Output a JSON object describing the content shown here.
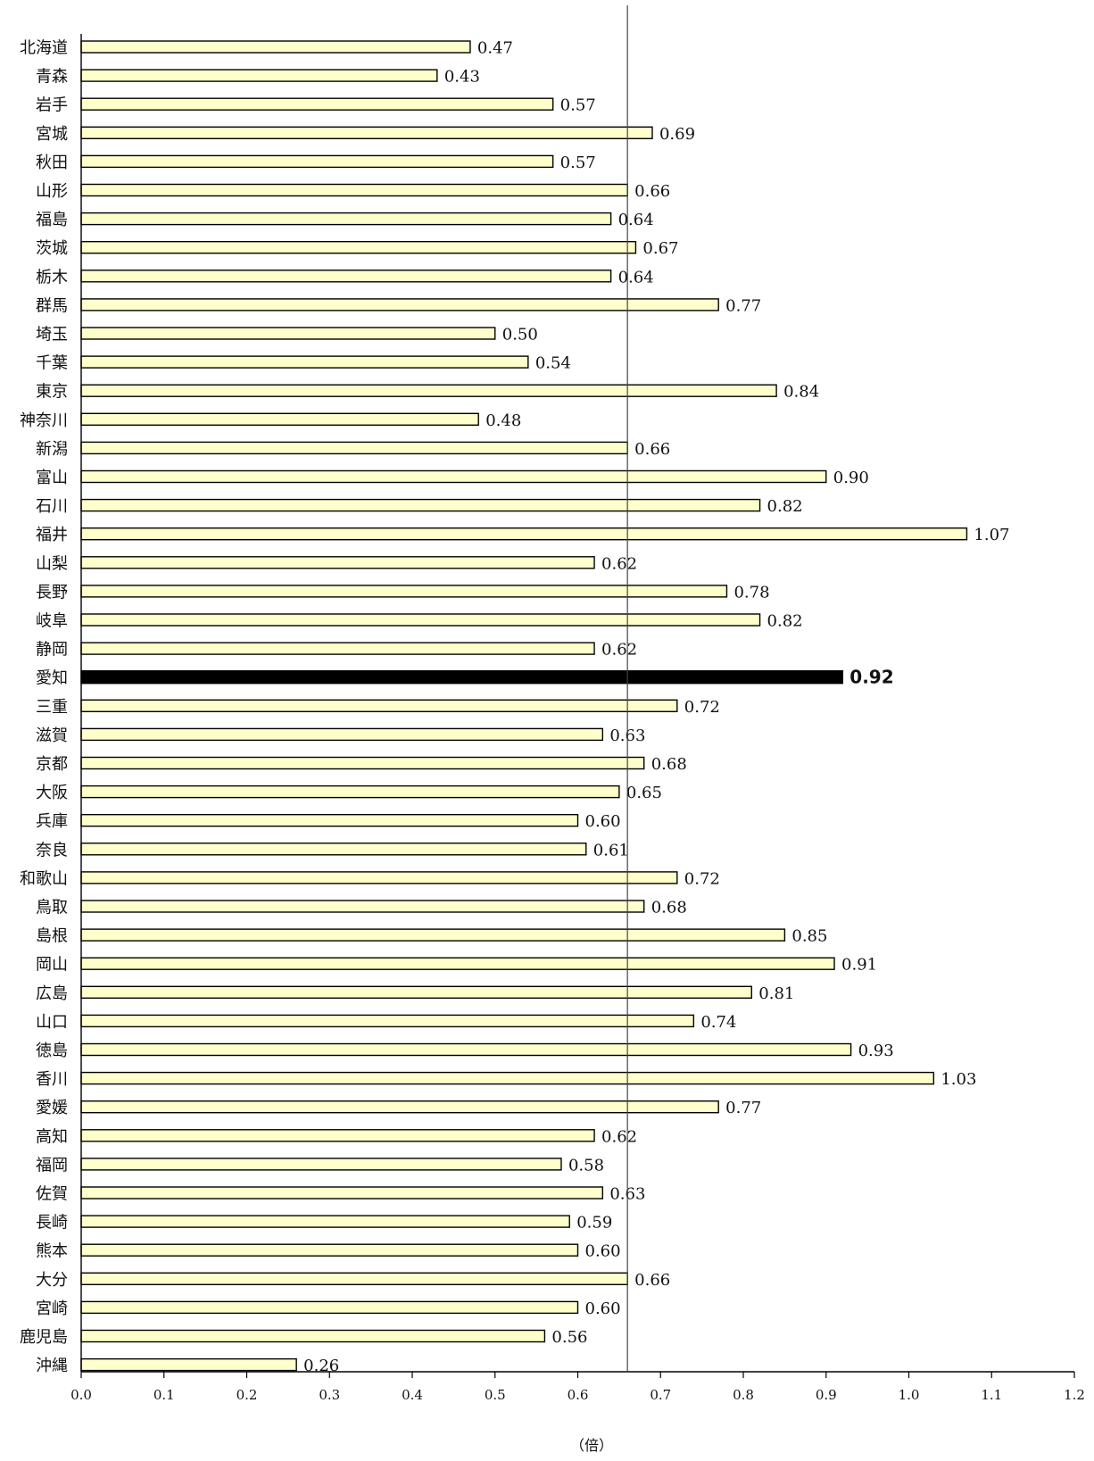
{
  "chart_data": {
    "type": "bar",
    "orientation": "horizontal",
    "categories": [
      "北海道",
      "青森",
      "岩手",
      "宮城",
      "秋田",
      "山形",
      "福島",
      "茨城",
      "栃木",
      "群馬",
      "埼玉",
      "千葉",
      "東京",
      "神奈川",
      "新潟",
      "富山",
      "石川",
      "福井",
      "山梨",
      "長野",
      "岐阜",
      "静岡",
      "愛知",
      "三重",
      "滋賀",
      "京都",
      "大阪",
      "兵庫",
      "奈良",
      "和歌山",
      "鳥取",
      "島根",
      "岡山",
      "広島",
      "山口",
      "徳島",
      "香川",
      "愛媛",
      "高知",
      "福岡",
      "佐賀",
      "長崎",
      "熊本",
      "大分",
      "宮崎",
      "鹿児島",
      "沖縄"
    ],
    "values": [
      0.47,
      0.43,
      0.57,
      0.69,
      0.57,
      0.66,
      0.64,
      0.67,
      0.64,
      0.77,
      0.5,
      0.54,
      0.84,
      0.48,
      0.66,
      0.9,
      0.82,
      1.07,
      0.62,
      0.78,
      0.82,
      0.62,
      0.92,
      0.72,
      0.63,
      0.68,
      0.65,
      0.6,
      0.61,
      0.72,
      0.68,
      0.85,
      0.91,
      0.81,
      0.74,
      0.93,
      1.03,
      0.77,
      0.62,
      0.58,
      0.63,
      0.59,
      0.6,
      0.66,
      0.6,
      0.56,
      0.26
    ],
    "value_labels": [
      "0.47",
      "0.43",
      "0.57",
      "0.69",
      "0.57",
      "0.66",
      "0.64",
      "0.67",
      "0.64",
      "0.77",
      "0.50",
      "0.54",
      "0.84",
      "0.48",
      "0.66",
      "0.90",
      "0.82",
      "1.07",
      "0.62",
      "0.78",
      "0.82",
      "0.62",
      "0.92",
      "0.72",
      "0.63",
      "0.68",
      "0.65",
      "0.60",
      "0.61",
      "0.72",
      "0.68",
      "0.85",
      "0.91",
      "0.81",
      "0.74",
      "0.93",
      "1.03",
      "0.77",
      "0.62",
      "0.58",
      "0.63",
      "0.59",
      "0.60",
      "0.66",
      "0.60",
      "0.56",
      "0.26"
    ],
    "highlight_category": "愛知",
    "reference_line": 0.66,
    "xlim": [
      0.0,
      1.2
    ],
    "x_ticks": [
      "0.0",
      "0.1",
      "0.2",
      "0.3",
      "0.4",
      "0.5",
      "0.6",
      "0.7",
      "0.8",
      "0.9",
      "1.0",
      "1.1",
      "1.2"
    ],
    "xlabel": "（倍）",
    "grid": false,
    "colors": {
      "bar_fill": "#ffffcc",
      "bar_stroke": "#000000",
      "highlight_fill": "#000000",
      "reference_line": "#444444"
    }
  }
}
